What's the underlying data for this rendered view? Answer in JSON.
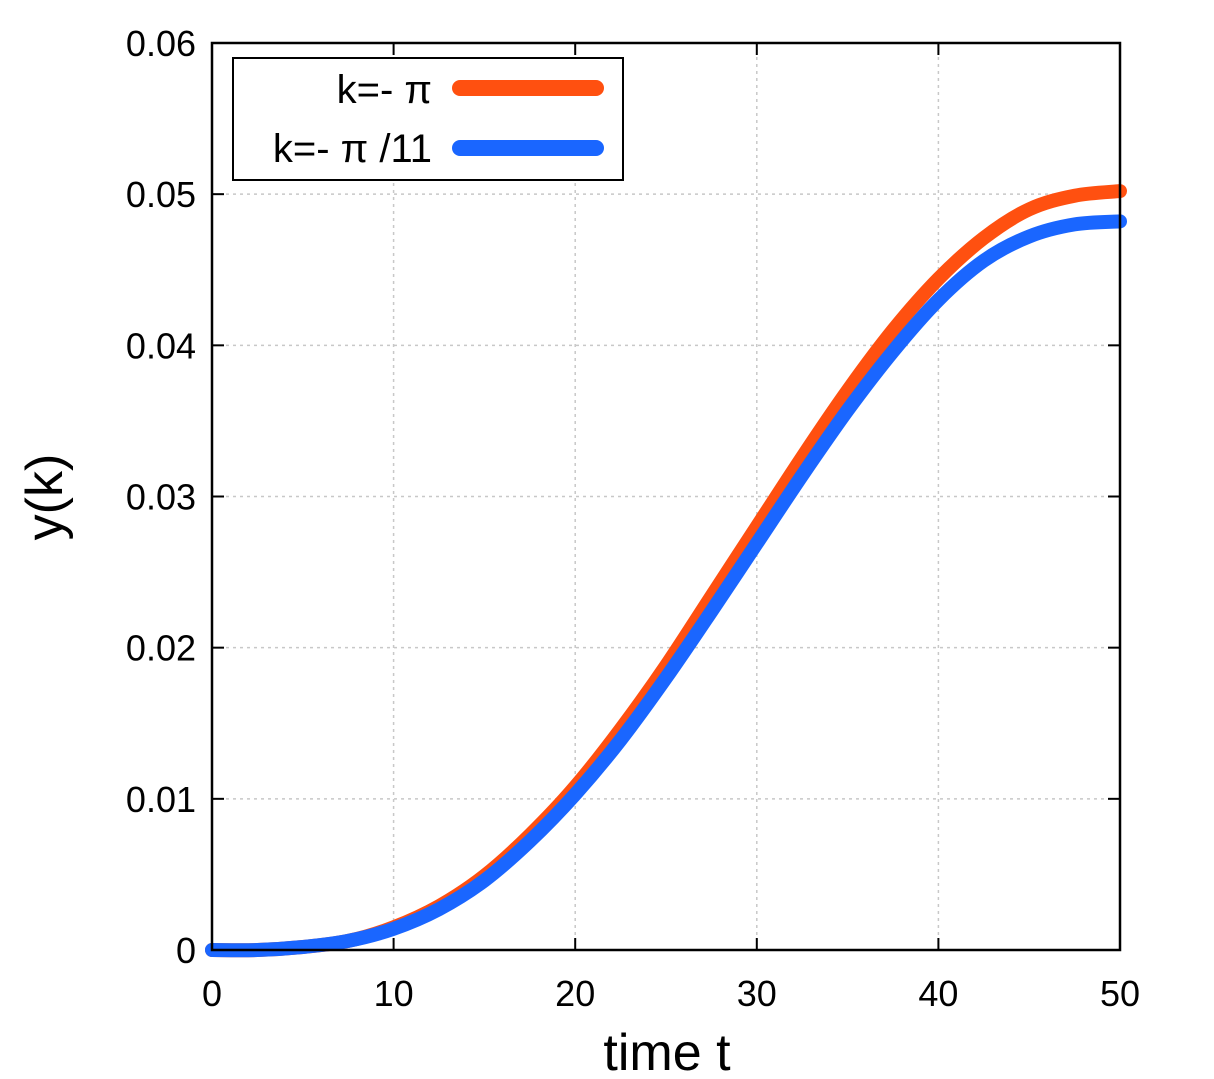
{
  "chart_data": {
    "type": "line",
    "title": "",
    "xlabel": "time t",
    "ylabel": "y(k)",
    "xlim": [
      0,
      50
    ],
    "ylim": [
      0,
      0.06
    ],
    "xticks": [
      0,
      10,
      20,
      30,
      40,
      50
    ],
    "xtick_labels": [
      "0",
      "10",
      "20",
      "30",
      "40",
      "50"
    ],
    "yticks": [
      0,
      0.01,
      0.02,
      0.03,
      0.04,
      0.05,
      0.06
    ],
    "ytick_labels": [
      "0",
      "0.01",
      "0.02",
      "0.03",
      "0.04",
      "0.05",
      "0.06"
    ],
    "grid": true,
    "legend_position": "top-left",
    "x": [
      0,
      2.5,
      5,
      7.5,
      10,
      12.5,
      15,
      17.5,
      20,
      22.5,
      25,
      27.5,
      30,
      32.5,
      35,
      37.5,
      40,
      42.5,
      45,
      47.5,
      50
    ],
    "series": [
      {
        "name": "k=- π",
        "color": "#ff5010",
        "values": [
          0,
          0.0,
          0.0002,
          0.0006,
          0.0015,
          0.0029,
          0.0049,
          0.0076,
          0.0108,
          0.0146,
          0.0188,
          0.0234,
          0.028,
          0.0326,
          0.037,
          0.041,
          0.0444,
          0.0471,
          0.049,
          0.0499,
          0.0502
        ]
      },
      {
        "name": "k=- π /11",
        "color": "#1a66ff",
        "values": [
          0,
          0.0,
          0.0002,
          0.0006,
          0.0014,
          0.0027,
          0.0046,
          0.0072,
          0.0103,
          0.0139,
          0.018,
          0.0224,
          0.0269,
          0.0314,
          0.0357,
          0.0396,
          0.043,
          0.0456,
          0.0472,
          0.048,
          0.0482
        ]
      }
    ]
  }
}
